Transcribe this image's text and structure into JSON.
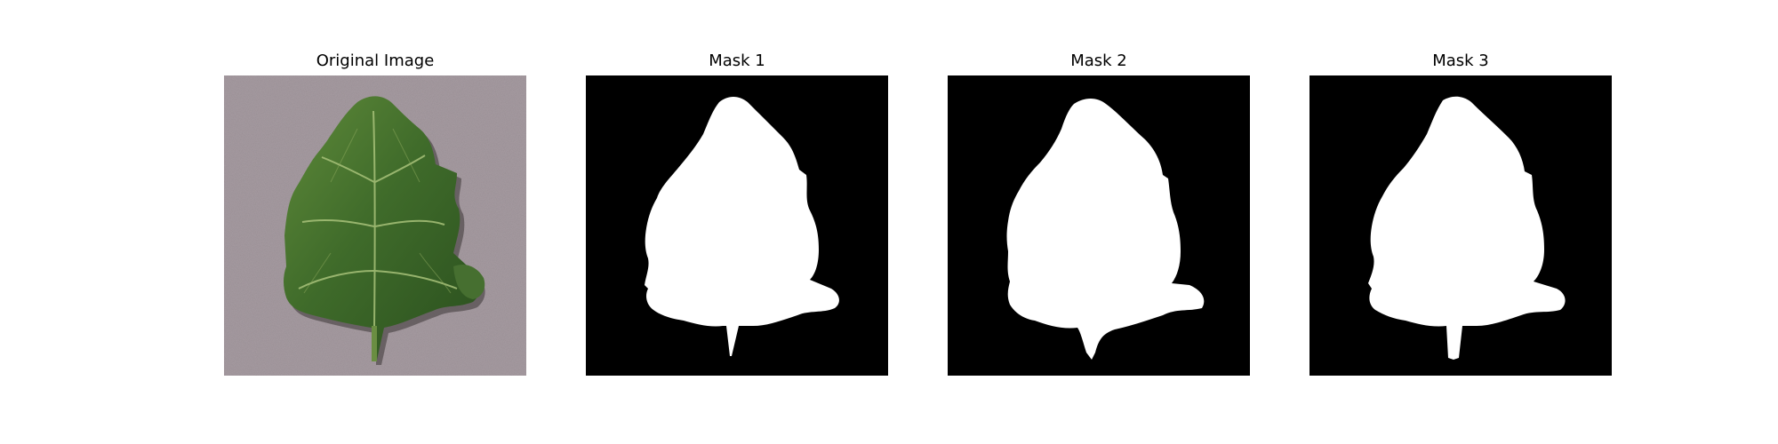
{
  "figure": {
    "panels": [
      {
        "title": "Original Image",
        "content": "photo of a green tomato leaf on a grey textured background"
      },
      {
        "title": "Mask 1",
        "content": "binary segmentation mask, white leaf on black"
      },
      {
        "title": "Mask 2",
        "content": "binary segmentation mask, white leaf on black"
      },
      {
        "title": "Mask 3",
        "content": "binary segmentation mask, white leaf on black"
      }
    ]
  },
  "colors": {
    "background_photo": "#a59a9f",
    "leaf_dark": "#2f5b22",
    "leaf_light": "#6a8e42",
    "mask_bg": "#000000",
    "mask_fg": "#ffffff"
  }
}
